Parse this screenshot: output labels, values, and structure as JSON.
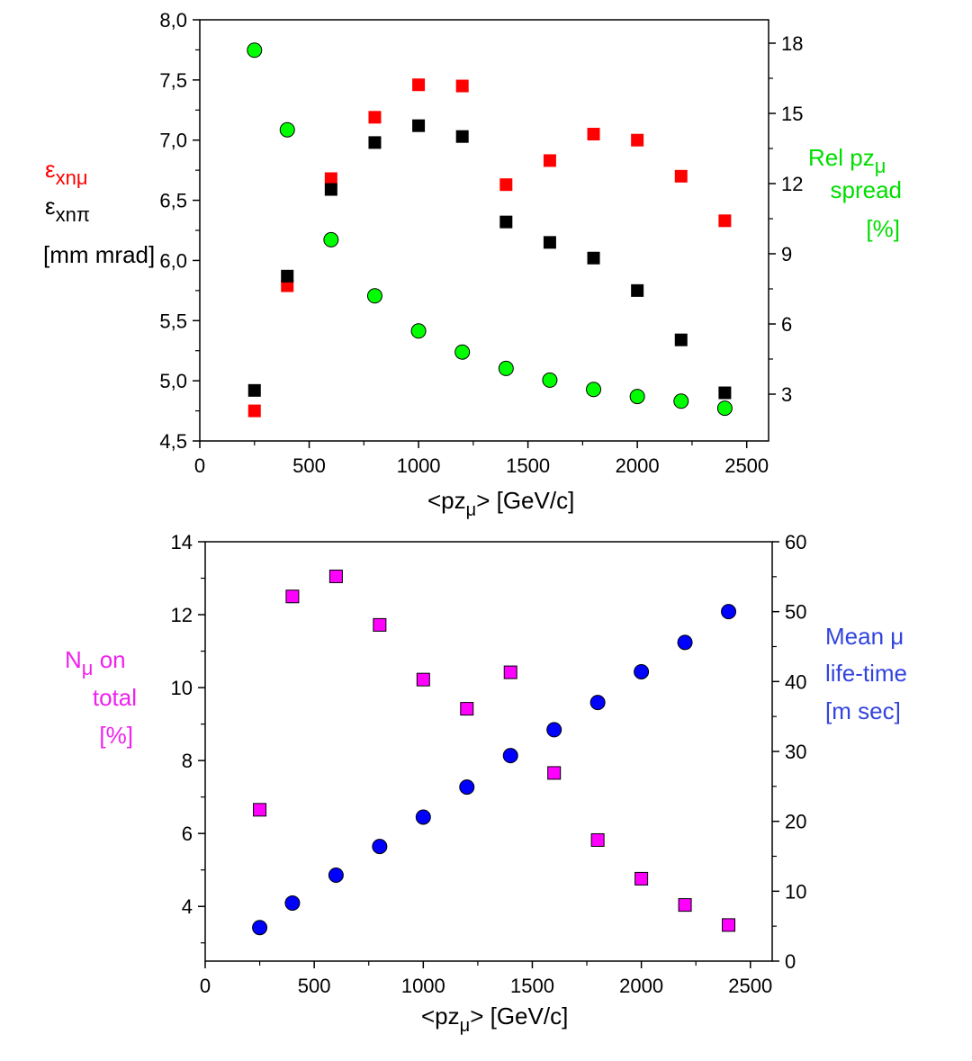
{
  "colors": {
    "red": "#ff0000",
    "black": "#000000",
    "green": "#00ff00",
    "magenta": "#ff00ff",
    "blue": "#0000ff",
    "green_text": "#00dd00",
    "magenta_text": "#ee22ee",
    "blue_text": "#3344dd"
  },
  "top": {
    "xlabel_pre": "<pz",
    "xlabel_sub": "μ",
    "xlabel_post": ">  [GeV/c]",
    "left_label": {
      "l1": "ε",
      "l1_sub": "xnμ",
      "l2": "ε",
      "l2_sub": "xnπ",
      "l3": "[mm mrad]"
    },
    "right_label": {
      "l1": "Rel pz",
      "l1_sub": "μ",
      "l2": "spread",
      "l3": "[%]"
    }
  },
  "bottom": {
    "xlabel_pre": "<pz",
    "xlabel_sub": "μ",
    "xlabel_post": ">  [GeV/c]",
    "left_label": {
      "l1": "N",
      "l1_sub": "μ",
      "l1_post": " on",
      "l2": "total",
      "l3": "[%]"
    },
    "right_label": {
      "l1": "Mean μ",
      "l2": "life-time",
      "l3": "[m sec]"
    }
  },
  "chart_data": [
    {
      "type": "scatter",
      "x": [
        250,
        400,
        600,
        800,
        1000,
        1200,
        1400,
        1600,
        1800,
        2000,
        2200,
        2400
      ],
      "xlim": [
        0,
        2600
      ],
      "xticks": [
        "0",
        "500",
        "1000",
        "1500",
        "2000",
        "2500"
      ],
      "xtick_values": [
        0,
        500,
        1000,
        1500,
        2000,
        2500
      ],
      "ylim": [
        4.5,
        8.0
      ],
      "yticks": [
        "4,5",
        "5,0",
        "5,5",
        "6,0",
        "6,5",
        "7,0",
        "7,5",
        "8,0"
      ],
      "ytick_values": [
        4.5,
        5.0,
        5.5,
        6.0,
        6.5,
        7.0,
        7.5,
        8.0
      ],
      "y2lim": [
        1.0,
        19.0
      ],
      "y2ticks": [
        "3",
        "6",
        "9",
        "12",
        "15",
        "18"
      ],
      "y2tick_values": [
        3,
        6,
        9,
        12,
        15,
        18
      ],
      "series": [
        {
          "values": [
            4.75,
            5.79,
            6.68,
            7.19,
            7.46,
            7.45,
            6.63,
            6.83,
            7.05,
            7.0,
            6.7,
            6.33
          ],
          "axis": "left",
          "marker": "square",
          "color": "#ff0000"
        },
        {
          "values": [
            4.92,
            5.87,
            6.59,
            6.98,
            7.12,
            7.03,
            6.32,
            6.15,
            6.02,
            5.75,
            5.34,
            4.9
          ],
          "axis": "left",
          "marker": "square",
          "color": "#000000"
        },
        {
          "values": [
            17.7,
            14.3,
            9.6,
            7.2,
            5.7,
            4.8,
            4.1,
            3.6,
            3.2,
            2.9,
            2.7,
            2.4
          ],
          "axis": "right",
          "marker": "circle",
          "color": "#00ff00"
        }
      ]
    },
    {
      "type": "scatter",
      "x": [
        250,
        400,
        600,
        800,
        1000,
        1200,
        1400,
        1600,
        1800,
        2000,
        2200,
        2400
      ],
      "xlim": [
        0,
        2600
      ],
      "xticks": [
        "0",
        "500",
        "1000",
        "1500",
        "2000",
        "2500"
      ],
      "xtick_values": [
        0,
        500,
        1000,
        1500,
        2000,
        2500
      ],
      "ylim": [
        2.5,
        14
      ],
      "yticks": [
        "4",
        "6",
        "8",
        "10",
        "12",
        "14"
      ],
      "ytick_values": [
        4,
        6,
        8,
        10,
        12,
        14
      ],
      "y2lim": [
        0,
        60
      ],
      "y2ticks": [
        "0",
        "10",
        "20",
        "30",
        "40",
        "50",
        "60"
      ],
      "y2tick_values": [
        0,
        10,
        20,
        30,
        40,
        50,
        60
      ],
      "series": [
        {
          "values": [
            6.65,
            12.5,
            13.05,
            11.72,
            10.22,
            9.42,
            10.42,
            7.66,
            5.82,
            4.76,
            4.04,
            3.49
          ],
          "axis": "left",
          "marker": "square",
          "color": "#ff00ff"
        },
        {
          "values": [
            4.8,
            8.3,
            12.3,
            16.4,
            20.6,
            24.9,
            29.4,
            33.1,
            37.0,
            41.4,
            45.6,
            50.0
          ],
          "axis": "right",
          "marker": "circle",
          "color": "#0000ff"
        }
      ]
    }
  ]
}
